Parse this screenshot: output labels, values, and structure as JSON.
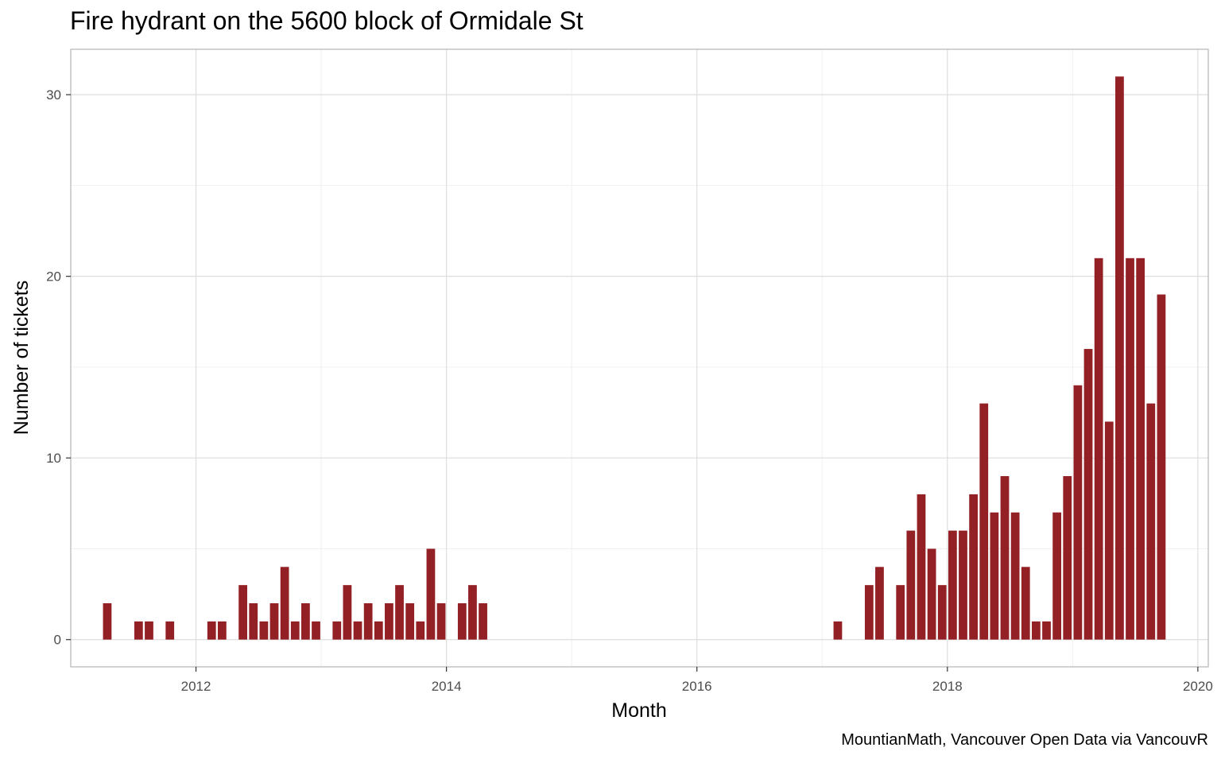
{
  "chart_data": {
    "type": "bar",
    "title": "Fire hydrant on the 5600 block of Ormidale St",
    "xlabel": "Month",
    "ylabel": "Number of tickets",
    "caption": "MountianMath, Vancouver Open Data via VancouvR",
    "x_axis": {
      "type": "date",
      "range": [
        "2011-01",
        "2020-02"
      ],
      "tick_labels": [
        "2012",
        "2014",
        "2016",
        "2018",
        "2020"
      ]
    },
    "ylim": [
      -1.5,
      32.5
    ],
    "yticks": [
      0,
      10,
      20,
      30
    ],
    "grid": true,
    "bar_color": "#922025",
    "series": [
      {
        "x": [
          "2011-04",
          "2011-05",
          "2011-06",
          "2011-07",
          "2011-08",
          "2011-09",
          "2011-10",
          "2011-11",
          "2011-12",
          "2012-01",
          "2012-02",
          "2012-03",
          "2012-04",
          "2012-05",
          "2012-06",
          "2012-07",
          "2012-08",
          "2012-09",
          "2012-10",
          "2012-11",
          "2012-12",
          "2013-01",
          "2013-02",
          "2013-03",
          "2013-04",
          "2013-05",
          "2013-06",
          "2013-07",
          "2013-08",
          "2013-09",
          "2013-10",
          "2013-11",
          "2013-12",
          "2014-01",
          "2014-02",
          "2014-03",
          "2014-04",
          "2017-02",
          "2017-03",
          "2017-04",
          "2017-05",
          "2017-06",
          "2017-07",
          "2017-08",
          "2017-09",
          "2017-10",
          "2017-11",
          "2017-12",
          "2018-01",
          "2018-02",
          "2018-03",
          "2018-04",
          "2018-05",
          "2018-06",
          "2018-07",
          "2018-08",
          "2018-09",
          "2018-10",
          "2018-11",
          "2018-12",
          "2019-01",
          "2019-02",
          "2019-03",
          "2019-04",
          "2019-05",
          "2019-06",
          "2019-07",
          "2019-08",
          "2019-09",
          "2019-10"
        ],
        "values": [
          2,
          0,
          0,
          1,
          1,
          0,
          1,
          0,
          0,
          0,
          1,
          1,
          0,
          3,
          2,
          1,
          2,
          4,
          1,
          2,
          1,
          0,
          1,
          3,
          1,
          2,
          1,
          2,
          3,
          2,
          1,
          5,
          2,
          0,
          2,
          3,
          2,
          1,
          0,
          0,
          3,
          4,
          0,
          3,
          6,
          8,
          5,
          3,
          6,
          6,
          8,
          13,
          7,
          9,
          7,
          4,
          1,
          1,
          7,
          9,
          14,
          16,
          21,
          12,
          31,
          21,
          21,
          13,
          19,
          0
        ]
      }
    ]
  }
}
